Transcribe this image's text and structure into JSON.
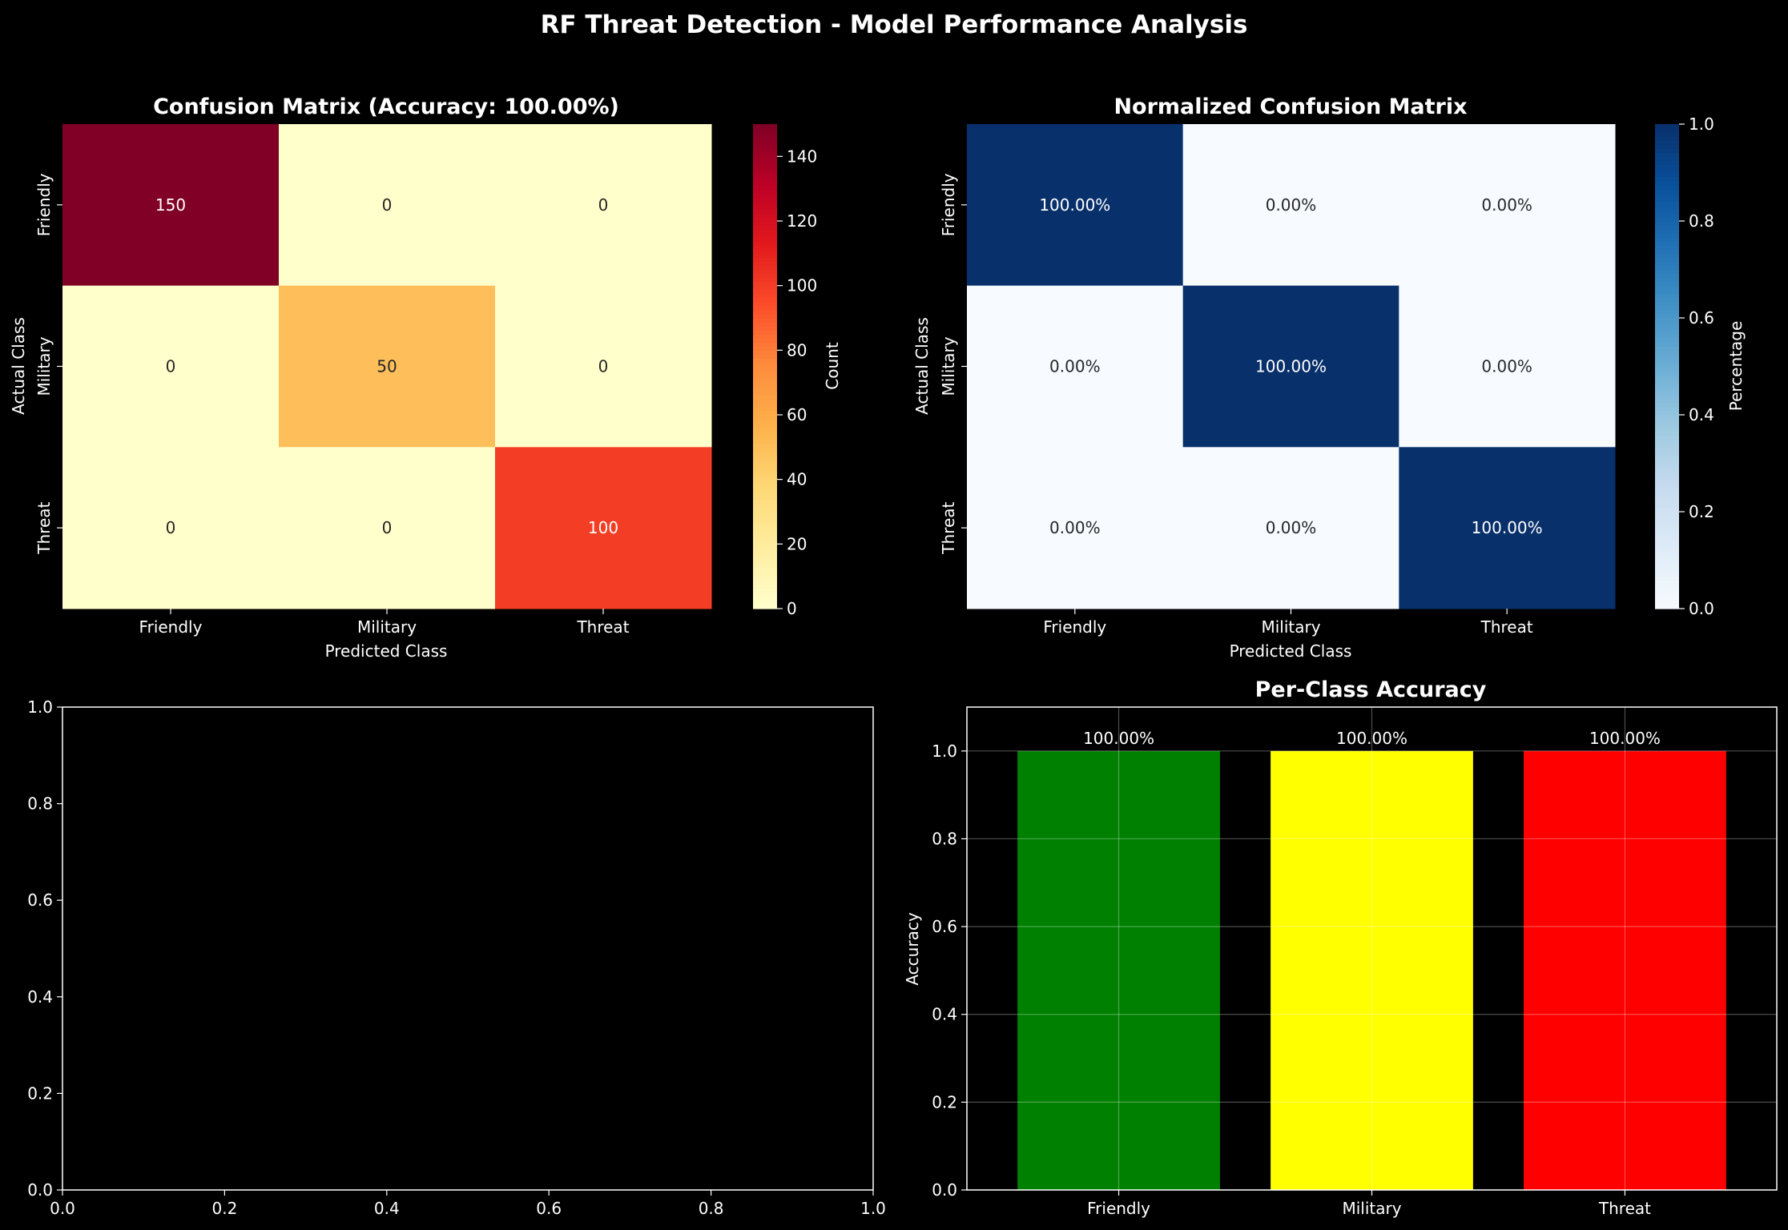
{
  "figure": {
    "title": "RF Threat Detection - Model Performance Analysis",
    "background": "#000000"
  },
  "chart_data": [
    {
      "type": "heatmap",
      "title": "Confusion Matrix (Accuracy: 100.00%)",
      "xlabel": "Predicted Class",
      "ylabel": "Actual Class",
      "x_categories": [
        "Friendly",
        "Military",
        "Threat"
      ],
      "y_categories": [
        "Friendly",
        "Military",
        "Threat"
      ],
      "values": [
        [
          150,
          0,
          0
        ],
        [
          0,
          50,
          0
        ],
        [
          0,
          0,
          100
        ]
      ],
      "cell_labels": [
        [
          "150",
          "0",
          "0"
        ],
        [
          "0",
          "50",
          "0"
        ],
        [
          "0",
          "0",
          "100"
        ]
      ],
      "colormap": "YlOrRd",
      "colorbar": {
        "label": "Count",
        "range": [
          0,
          150
        ],
        "ticks": [
          0,
          20,
          40,
          60,
          80,
          100,
          120,
          140
        ]
      }
    },
    {
      "type": "heatmap",
      "title": "Normalized Confusion Matrix",
      "xlabel": "Predicted Class",
      "ylabel": "Actual Class",
      "x_categories": [
        "Friendly",
        "Military",
        "Threat"
      ],
      "y_categories": [
        "Friendly",
        "Military",
        "Threat"
      ],
      "values": [
        [
          1,
          0,
          0
        ],
        [
          0,
          1,
          0
        ],
        [
          0,
          0,
          1
        ]
      ],
      "cell_labels": [
        [
          "100.00%",
          "0.00%",
          "0.00%"
        ],
        [
          "0.00%",
          "100.00%",
          "0.00%"
        ],
        [
          "0.00%",
          "0.00%",
          "100.00%"
        ]
      ],
      "colormap": "Blues",
      "colorbar": {
        "label": "Percentage",
        "range": [
          0,
          1
        ],
        "ticks": [
          "0.0",
          "0.2",
          "0.4",
          "0.6",
          "0.8",
          "1.0"
        ]
      }
    },
    {
      "type": "line",
      "title": "",
      "xlim": [
        0,
        1
      ],
      "ylim": [
        0,
        1
      ],
      "xticks": [
        "0.0",
        "0.2",
        "0.4",
        "0.6",
        "0.8",
        "1.0"
      ],
      "yticks": [
        "0.0",
        "0.2",
        "0.4",
        "0.6",
        "0.8",
        "1.0"
      ],
      "series": []
    },
    {
      "type": "bar",
      "title": "Per-Class Accuracy",
      "categories": [
        "Friendly",
        "Military",
        "Threat"
      ],
      "values": [
        1.0,
        1.0,
        1.0
      ],
      "labels": [
        "100.00%",
        "100.00%",
        "100.00%"
      ],
      "colors": [
        "#008000",
        "#ffff00",
        "#ff0000"
      ],
      "xlabel": "",
      "ylabel": "Accuracy",
      "ylim": [
        0,
        1.1
      ],
      "yticks": [
        "0.0",
        "0.2",
        "0.4",
        "0.6",
        "0.8",
        "1.0"
      ],
      "grid": true
    }
  ]
}
